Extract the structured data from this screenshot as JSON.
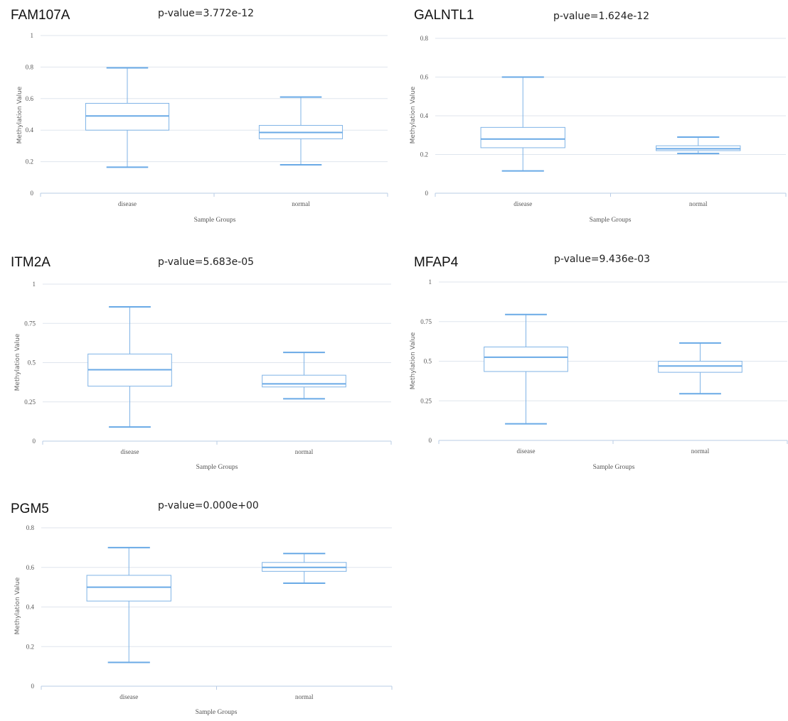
{
  "colors": {
    "box": "#7fb3e6",
    "median": "#6aaae6",
    "grid": "#dfe5ee",
    "axis": "#b9cce6"
  },
  "chart_data": [
    {
      "type": "box",
      "gene": "FAM107A",
      "pvalue_label": "p-value=3.772e-12",
      "ylabel": "Methylation Value",
      "xlabel": "Sample Groups",
      "ylim": [
        0,
        1
      ],
      "yticks": [
        0,
        0.2,
        0.4,
        0.6,
        0.8,
        1
      ],
      "ytick_labels": [
        "0",
        "0.2",
        "0.4",
        "0.6",
        "0.8",
        "1"
      ],
      "grid": true,
      "groups": [
        {
          "name": "disease",
          "min": 0.165,
          "q1": 0.4,
          "median": 0.49,
          "q3": 0.57,
          "max": 0.795
        },
        {
          "name": "normal",
          "min": 0.18,
          "q1": 0.345,
          "median": 0.385,
          "q3": 0.43,
          "max": 0.61
        }
      ]
    },
    {
      "type": "box",
      "gene": "GALNTL1",
      "pvalue_label": "p-value=1.624e-12",
      "ylabel": "Methylation Value",
      "xlabel": "Sample Groups",
      "ylim": [
        0,
        0.8
      ],
      "yticks": [
        0,
        0.2,
        0.4,
        0.6,
        0.8
      ],
      "ytick_labels": [
        "0",
        "0.2",
        "0.4",
        "0.6",
        "0.8"
      ],
      "grid": true,
      "groups": [
        {
          "name": "disease",
          "min": 0.115,
          "q1": 0.235,
          "median": 0.28,
          "q3": 0.34,
          "max": 0.6
        },
        {
          "name": "normal",
          "min": 0.205,
          "q1": 0.22,
          "median": 0.23,
          "q3": 0.245,
          "max": 0.29
        }
      ]
    },
    {
      "type": "box",
      "gene": "ITM2A",
      "pvalue_label": "p-value=5.683e-05",
      "ylabel": "Methylation Value",
      "xlabel": "Sample Groups",
      "ylim": [
        0,
        1
      ],
      "yticks": [
        0,
        0.25,
        0.5,
        0.75,
        1
      ],
      "ytick_labels": [
        "0",
        "0.25",
        "0.5",
        "0.75",
        "1"
      ],
      "grid": true,
      "groups": [
        {
          "name": "disease",
          "min": 0.09,
          "q1": 0.35,
          "median": 0.455,
          "q3": 0.555,
          "max": 0.855
        },
        {
          "name": "normal",
          "min": 0.27,
          "q1": 0.345,
          "median": 0.365,
          "q3": 0.42,
          "max": 0.565
        }
      ]
    },
    {
      "type": "box",
      "gene": "MFAP4",
      "pvalue_label": "p-value=9.436e-03",
      "ylabel": "Methylation Value",
      "xlabel": "Sample Groups",
      "ylim": [
        0,
        1
      ],
      "yticks": [
        0,
        0.25,
        0.5,
        0.75,
        1
      ],
      "ytick_labels": [
        "0",
        "0.25",
        "0.5",
        "0.75",
        "1"
      ],
      "grid": true,
      "groups": [
        {
          "name": "disease",
          "min": 0.105,
          "q1": 0.435,
          "median": 0.525,
          "q3": 0.59,
          "max": 0.795
        },
        {
          "name": "normal",
          "min": 0.295,
          "q1": 0.43,
          "median": 0.47,
          "q3": 0.5,
          "max": 0.615
        }
      ]
    },
    {
      "type": "box",
      "gene": "PGM5",
      "pvalue_label": "p-value=0.000e+00",
      "ylabel": "Methylation Value",
      "xlabel": "Sample Groups",
      "ylim": [
        0,
        0.8
      ],
      "yticks": [
        0,
        0.2,
        0.4,
        0.6,
        0.8
      ],
      "ytick_labels": [
        "0",
        "0.2",
        "0.4",
        "0.6",
        "0.8"
      ],
      "grid": true,
      "groups": [
        {
          "name": "disease",
          "min": 0.12,
          "q1": 0.43,
          "median": 0.5,
          "q3": 0.56,
          "max": 0.7
        },
        {
          "name": "normal",
          "min": 0.52,
          "q1": 0.58,
          "median": 0.6,
          "q3": 0.625,
          "max": 0.67
        }
      ]
    }
  ]
}
